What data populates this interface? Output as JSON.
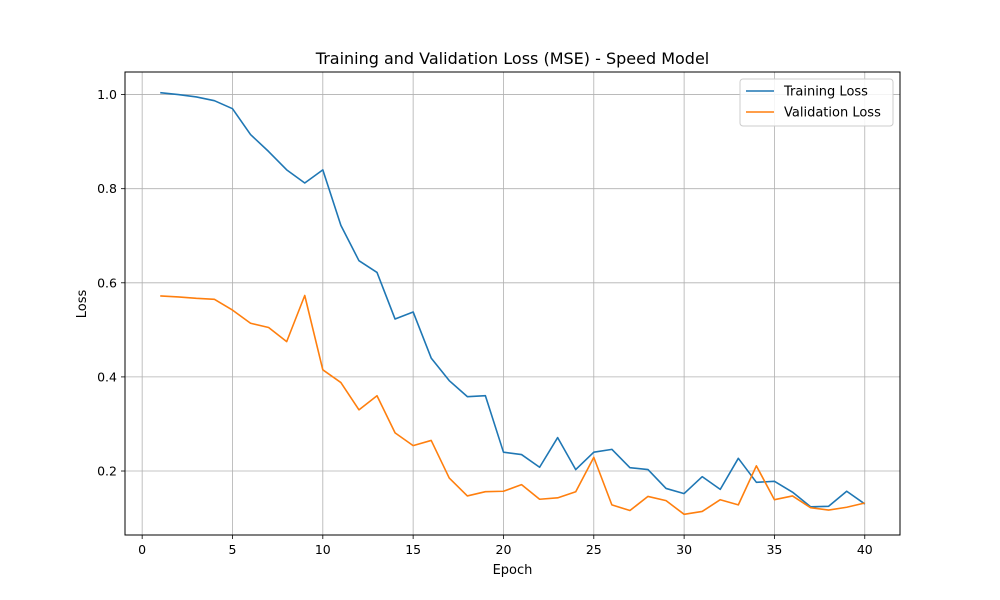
{
  "chart_data": {
    "type": "line",
    "title": "Training and Validation Loss (MSE) - Speed Model",
    "xlabel": "Epoch",
    "ylabel": "Loss",
    "xlim": [
      -0.95,
      41.95
    ],
    "ylim": [
      0.064,
      1.048
    ],
    "xticks": [
      0,
      5,
      10,
      15,
      20,
      25,
      30,
      35,
      40
    ],
    "yticks": [
      0.2,
      0.4,
      0.6,
      0.8,
      1.0
    ],
    "ytick_labels": [
      "0.2",
      "0.4",
      "0.6",
      "0.8",
      "1.0"
    ],
    "grid": true,
    "legend_position": "upper-right",
    "x": [
      1,
      2,
      3,
      4,
      5,
      6,
      7,
      8,
      9,
      10,
      11,
      12,
      13,
      14,
      15,
      16,
      17,
      18,
      19,
      20,
      21,
      22,
      23,
      24,
      25,
      26,
      27,
      28,
      29,
      30,
      31,
      32,
      33,
      34,
      35,
      36,
      37,
      38,
      39,
      40
    ],
    "series": [
      {
        "name": "Training Loss",
        "color": "#1f77b4",
        "values": [
          1.004,
          1.0,
          0.995,
          0.987,
          0.97,
          0.915,
          0.879,
          0.84,
          0.812,
          0.84,
          0.722,
          0.647,
          0.622,
          0.523,
          0.538,
          0.44,
          0.392,
          0.358,
          0.36,
          0.24,
          0.235,
          0.208,
          0.271,
          0.203,
          0.24,
          0.246,
          0.207,
          0.203,
          0.163,
          0.152,
          0.188,
          0.161,
          0.227,
          0.176,
          0.178,
          0.155,
          0.124,
          0.125,
          0.157,
          0.13
        ]
      },
      {
        "name": "Validation Loss",
        "color": "#ff7f0e",
        "values": [
          0.572,
          0.57,
          0.567,
          0.565,
          0.542,
          0.514,
          0.505,
          0.475,
          0.573,
          0.415,
          0.388,
          0.33,
          0.36,
          0.281,
          0.254,
          0.265,
          0.185,
          0.147,
          0.156,
          0.157,
          0.171,
          0.14,
          0.143,
          0.156,
          0.229,
          0.128,
          0.116,
          0.146,
          0.137,
          0.108,
          0.114,
          0.139,
          0.128,
          0.211,
          0.139,
          0.147,
          0.122,
          0.117,
          0.123,
          0.132
        ]
      }
    ]
  }
}
